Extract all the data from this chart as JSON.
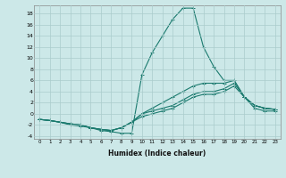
{
  "xlabel": "Humidex (Indice chaleur)",
  "bg_color": "#cce8e8",
  "line_color": "#1a7a6e",
  "grid_color": "#aacccc",
  "xlim": [
    -0.5,
    23.5
  ],
  "ylim": [
    -4.5,
    19.5
  ],
  "xticks": [
    0,
    1,
    2,
    3,
    4,
    5,
    6,
    7,
    8,
    9,
    10,
    11,
    12,
    13,
    14,
    15,
    16,
    17,
    18,
    19,
    20,
    21,
    22,
    23
  ],
  "yticks": [
    -4,
    -2,
    0,
    2,
    4,
    6,
    8,
    10,
    12,
    14,
    16,
    18
  ],
  "series": [
    [
      -1,
      -1.2,
      -1.5,
      -2,
      -2.2,
      -2.5,
      -3,
      -3.2,
      -3.5,
      -3.5,
      7,
      11,
      14,
      17,
      19,
      19,
      12,
      8.5,
      6,
      6,
      3,
      1,
      0.5,
      0.5
    ],
    [
      -1,
      -1.2,
      -1.5,
      -1.8,
      -2,
      -2.5,
      -2.8,
      -3,
      -2.5,
      -1.5,
      0,
      1,
      2,
      3,
      4,
      5,
      5.5,
      5.5,
      5.5,
      6,
      3,
      1.5,
      1,
      0.8
    ],
    [
      -1,
      -1.2,
      -1.5,
      -1.8,
      -2,
      -2.5,
      -2.8,
      -3,
      -2.5,
      -1.5,
      0,
      0.5,
      1,
      1.5,
      2.5,
      3.5,
      4,
      4,
      4.5,
      5.5,
      3,
      1.5,
      1,
      0.8
    ],
    [
      -1,
      -1.2,
      -1.5,
      -1.8,
      -2,
      -2.5,
      -2.8,
      -3,
      -2.5,
      -1.5,
      -0.5,
      0,
      0.5,
      1,
      2,
      3,
      3.5,
      3.5,
      4,
      5,
      3,
      1.5,
      1,
      0.8
    ]
  ]
}
